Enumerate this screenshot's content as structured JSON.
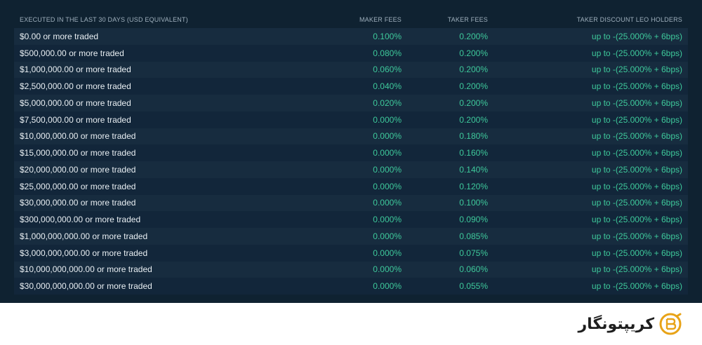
{
  "header": {
    "volume": "EXECUTED IN THE LAST 30 DAYS (USD EQUIVALENT)",
    "maker": "MAKER FEES",
    "taker": "TAKER FEES",
    "discount": "TAKER DISCOUNT LEO HOLDERS"
  },
  "rows": [
    {
      "volume": "$0.00 or more traded",
      "maker": "0.100%",
      "taker": "0.200%",
      "discount": "up to -(25.000% + 6bps)"
    },
    {
      "volume": "$500,000.00 or more traded",
      "maker": "0.080%",
      "taker": "0.200%",
      "discount": "up to -(25.000% + 6bps)"
    },
    {
      "volume": "$1,000,000.00 or more traded",
      "maker": "0.060%",
      "taker": "0.200%",
      "discount": "up to -(25.000% + 6bps)"
    },
    {
      "volume": "$2,500,000.00 or more traded",
      "maker": "0.040%",
      "taker": "0.200%",
      "discount": "up to -(25.000% + 6bps)"
    },
    {
      "volume": "$5,000,000.00 or more traded",
      "maker": "0.020%",
      "taker": "0.200%",
      "discount": "up to -(25.000% + 6bps)"
    },
    {
      "volume": "$7,500,000.00 or more traded",
      "maker": "0.000%",
      "taker": "0.200%",
      "discount": "up to -(25.000% + 6bps)"
    },
    {
      "volume": "$10,000,000.00 or more traded",
      "maker": "0.000%",
      "taker": "0.180%",
      "discount": "up to -(25.000% + 6bps)"
    },
    {
      "volume": "$15,000,000.00 or more traded",
      "maker": "0.000%",
      "taker": "0.160%",
      "discount": "up to -(25.000% + 6bps)"
    },
    {
      "volume": "$20,000,000.00 or more traded",
      "maker": "0.000%",
      "taker": "0.140%",
      "discount": "up to -(25.000% + 6bps)"
    },
    {
      "volume": "$25,000,000.00 or more traded",
      "maker": "0.000%",
      "taker": "0.120%",
      "discount": "up to -(25.000% + 6bps)"
    },
    {
      "volume": "$30,000,000.00 or more traded",
      "maker": "0.000%",
      "taker": "0.100%",
      "discount": "up to -(25.000% + 6bps)"
    },
    {
      "volume": "$300,000,000.00 or more traded",
      "maker": "0.000%",
      "taker": "0.090%",
      "discount": "up to -(25.000% + 6bps)"
    },
    {
      "volume": "$1,000,000,000.00 or more traded",
      "maker": "0.000%",
      "taker": "0.085%",
      "discount": "up to -(25.000% + 6bps)"
    },
    {
      "volume": "$3,000,000,000.00 or more traded",
      "maker": "0.000%",
      "taker": "0.075%",
      "discount": "up to -(25.000% + 6bps)"
    },
    {
      "volume": "$10,000,000,000.00 or more traded",
      "maker": "0.000%",
      "taker": "0.060%",
      "discount": "up to -(25.000% + 6bps)"
    },
    {
      "volume": "$30,000,000,000.00 or more traded",
      "maker": "0.000%",
      "taker": "0.055%",
      "discount": "up to -(25.000% + 6bps)"
    }
  ],
  "brand": {
    "name": "کریپتونگار",
    "icon": "bitcoin-pen-logo-icon",
    "color": "#e8a317"
  },
  "colors": {
    "panel_bg": "#0f2231",
    "row_odd": "#172c3f",
    "row_even": "#12263a",
    "fee_green": "#3ec99b"
  }
}
